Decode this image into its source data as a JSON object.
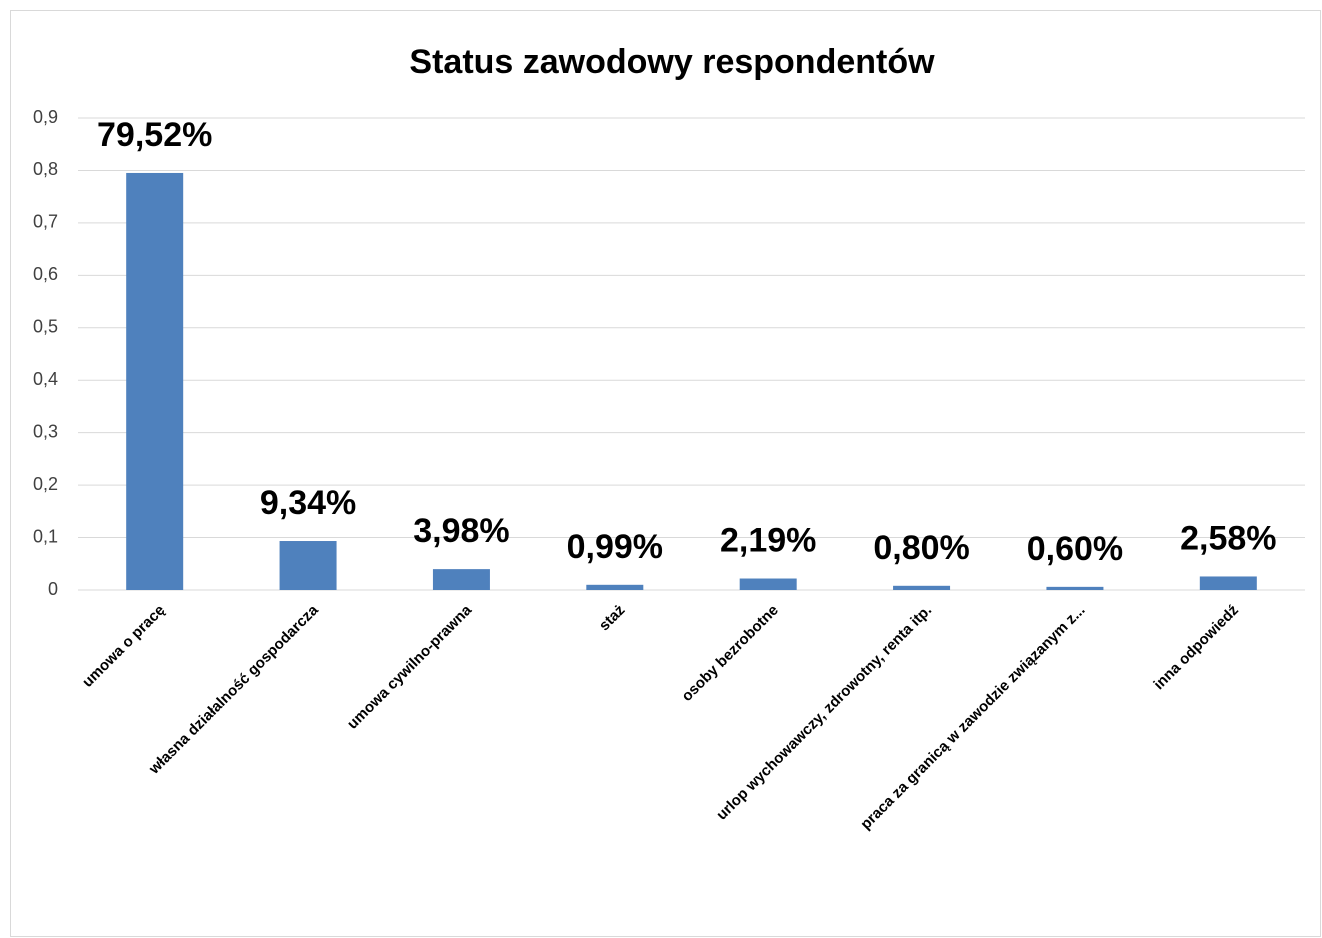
{
  "chart_data": {
    "type": "bar",
    "title": "Status zawodowy respondentów",
    "categories": [
      "umowa o pracę",
      "własna działalność gospodarcza",
      "umowa cywilno-prawna",
      "staż",
      "osoby bezrobotne",
      "urlop wychowawczy, zdrowotny, renta itp.",
      "praca za granicą w zawodzie związanym z...",
      "inna odpowiedź"
    ],
    "values": [
      0.7952,
      0.0934,
      0.0398,
      0.0099,
      0.0219,
      0.008,
      0.006,
      0.0258
    ],
    "value_labels": [
      "79,52%",
      "9,34%",
      "3,98%",
      "0,99%",
      "2,19%",
      "0,80%",
      "0,60%",
      "2,58%"
    ],
    "color": "#4f81bd",
    "ylim": [
      0,
      0.9
    ],
    "yticks": [
      0,
      {
        "value": 0.1,
        "label": "0,1"
      },
      {
        "value": 0.2,
        "label": "0,2"
      },
      {
        "value": 0.3,
        "label": "0,3"
      },
      {
        "value": 0.4,
        "label": "0,4"
      },
      {
        "value": 0.5,
        "label": "0,5"
      },
      {
        "value": 0.6,
        "label": "0,6"
      },
      {
        "value": 0.7,
        "label": "0,7"
      },
      {
        "value": 0.8,
        "label": "0,8"
      },
      {
        "value": 0.9,
        "label": "0,9"
      }
    ],
    "grid": true
  }
}
